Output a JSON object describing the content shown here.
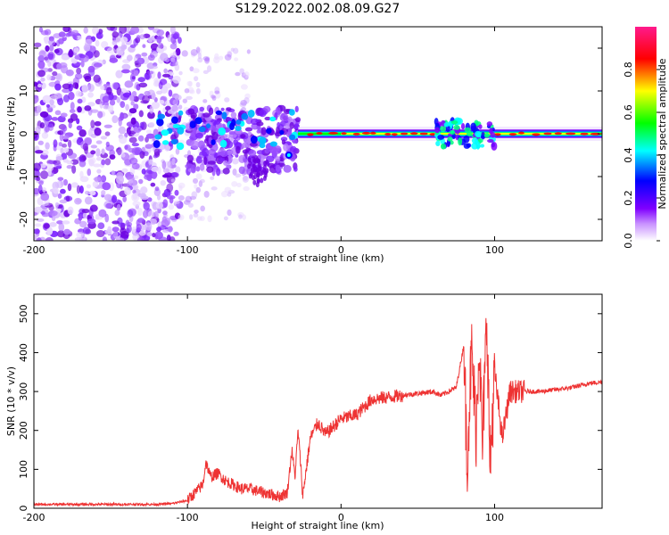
{
  "title": "S129.2022.002.08.09.G27",
  "chart_data": [
    {
      "type": "heatmap",
      "title": "",
      "xlabel": "Height of straight line (km)",
      "ylabel": "Frequency (Hz)",
      "xlim": [
        -200,
        170
      ],
      "ylim": [
        -25,
        25
      ],
      "xticks": [
        -200,
        -100,
        0,
        100
      ],
      "yticks": [
        -20,
        -10,
        0,
        10,
        20
      ],
      "colorbar": {
        "label": "Normalized spectral amplitude",
        "range": [
          0,
          1
        ],
        "ticks": [
          "0.0",
          "0.2",
          "0.4",
          "0.6",
          "0.8"
        ],
        "colors": [
          "#ffffff",
          "#8000ff",
          "#0000ff",
          "#00ffff",
          "#00ff00",
          "#ffff00",
          "#ff0000",
          "#ff1493"
        ]
      },
      "features": [
        {
          "region": "scattered noise",
          "x": [
            -200,
            -100
          ],
          "y": [
            -25,
            25
          ],
          "amplitude": 0.15
        },
        {
          "region": "transition",
          "x": [
            -100,
            -28
          ],
          "y": [
            -12,
            7
          ],
          "amplitude": 0.4
        },
        {
          "region": "coherent line",
          "x": [
            -28,
            170
          ],
          "y": [
            0,
            0
          ],
          "amplitude": 0.85
        },
        {
          "region": "perturbed segment",
          "x": [
            62,
            100
          ],
          "y": [
            -3,
            3
          ],
          "amplitude": 0.5
        }
      ]
    },
    {
      "type": "line",
      "title": "",
      "xlabel": "Height of straight line (km)",
      "ylabel": "SNR (10 * v/v)",
      "xlim": [
        -200,
        170
      ],
      "ylim": [
        0,
        550
      ],
      "xticks": [
        -200,
        -100,
        0,
        100
      ],
      "yticks": [
        0,
        100,
        200,
        300,
        400,
        500
      ],
      "color": "#ee3333",
      "x": [
        -200,
        -180,
        -160,
        -140,
        -120,
        -110,
        -100,
        -95,
        -90,
        -88,
        -85,
        -80,
        -75,
        -70,
        -65,
        -60,
        -55,
        -50,
        -45,
        -40,
        -35,
        -32,
        -30,
        -28,
        -26,
        -25,
        -20,
        -15,
        -10,
        -5,
        0,
        10,
        20,
        30,
        40,
        50,
        60,
        65,
        70,
        75,
        80,
        82,
        85,
        88,
        90,
        92,
        95,
        97,
        100,
        105,
        110,
        115,
        120,
        130,
        140,
        150,
        160,
        170
      ],
      "y": [
        10,
        10,
        10,
        10,
        10,
        12,
        20,
        40,
        60,
        120,
        80,
        90,
        70,
        60,
        50,
        50,
        45,
        40,
        35,
        30,
        40,
        150,
        80,
        200,
        100,
        30,
        180,
        220,
        190,
        210,
        230,
        240,
        280,
        285,
        290,
        295,
        300,
        290,
        300,
        310,
        420,
        120,
        400,
        200,
        450,
        150,
        500,
        100,
        350,
        180,
        300,
        300,
        300,
        300,
        305,
        310,
        320,
        325
      ]
    }
  ]
}
